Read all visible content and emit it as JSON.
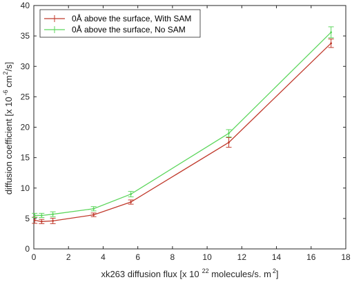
{
  "chart_data": {
    "type": "line",
    "xlabel": "xk263 diffusion flux [x 10",
    "xlabel_exp": "22",
    "xlabel_suffix": " molecules/s. m",
    "xlabel_exp2": "2",
    "xlabel_close": "]",
    "ylabel": "diffusion coefficient [x 10",
    "ylabel_exp": "-6",
    "ylabel_mid": " cm",
    "ylabel_exp2": "2",
    "ylabel_close": "/s]",
    "xlim": [
      0,
      18
    ],
    "ylim": [
      0,
      40
    ],
    "xticks": [
      0,
      2,
      4,
      6,
      8,
      10,
      12,
      14,
      16,
      18
    ],
    "yticks": [
      5,
      10,
      15,
      20,
      25,
      30,
      35,
      40
    ],
    "ytick_zero_label": "0",
    "grid": false,
    "legend_position": "top-left",
    "series": [
      {
        "name": "0Å above the surface, With SAM",
        "color": "#c0392b",
        "x": [
          0.05,
          0.45,
          1.1,
          3.45,
          5.6,
          11.25,
          17.15
        ],
        "y": [
          4.7,
          4.5,
          4.6,
          5.6,
          7.7,
          17.5,
          33.8
        ],
        "err": [
          0.5,
          0.35,
          0.45,
          0.3,
          0.35,
          0.8,
          0.7
        ]
      },
      {
        "name": "0Å above the surface, No SAM",
        "color": "#5cd65c",
        "x": [
          0.05,
          0.45,
          1.1,
          3.45,
          5.6,
          11.25,
          17.15
        ],
        "y": [
          5.5,
          5.5,
          5.7,
          6.6,
          9.0,
          19.0,
          35.6
        ],
        "err": [
          0.35,
          0.35,
          0.4,
          0.35,
          0.45,
          0.6,
          0.9
        ]
      }
    ]
  }
}
